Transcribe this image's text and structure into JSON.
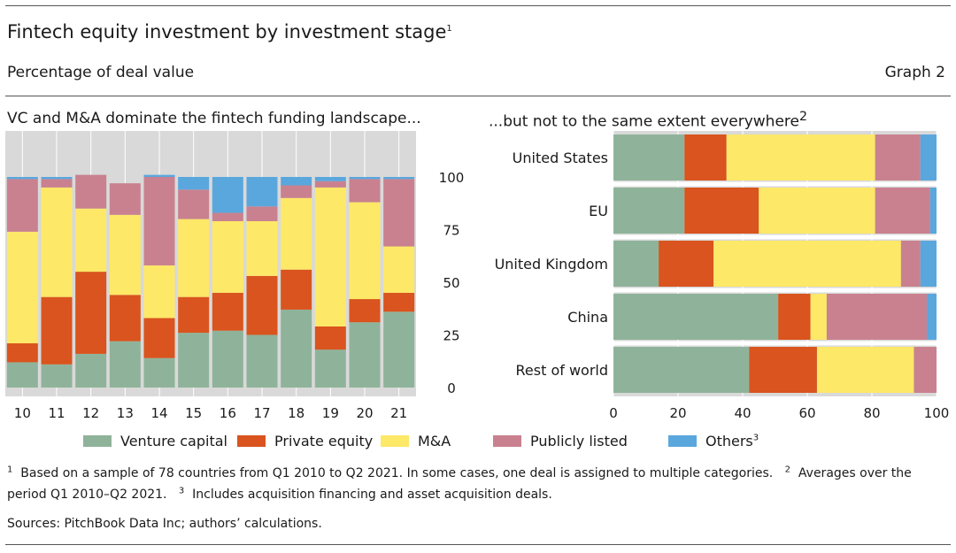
{
  "header": {
    "title": "Fintech equity investment by investment stage",
    "title_note": "1",
    "subtitle": "Percentage of deal value",
    "graph_label": "Graph 2"
  },
  "chart_data": [
    {
      "type": "bar",
      "stacked": true,
      "orientation": "vertical",
      "title": "VC and M&A dominate the fintech funding landscape...",
      "categories": [
        "10",
        "11",
        "12",
        "13",
        "14",
        "15",
        "16",
        "17",
        "18",
        "19",
        "20",
        "21"
      ],
      "ylim": [
        0,
        100
      ],
      "yticks": [
        0,
        25,
        50,
        75,
        100
      ],
      "y_axis_side": "right",
      "grid": true,
      "series": [
        {
          "name": "Venture capital",
          "values": [
            12,
            11,
            16,
            22,
            14,
            26,
            27,
            25,
            37,
            18,
            31,
            36
          ]
        },
        {
          "name": "Private equity",
          "values": [
            9,
            32,
            39,
            22,
            19,
            17,
            18,
            28,
            19,
            11,
            11,
            9
          ]
        },
        {
          "name": "M&A",
          "values": [
            53,
            52,
            30,
            38,
            25,
            37,
            34,
            26,
            34,
            66,
            46,
            22
          ]
        },
        {
          "name": "Publicly listed",
          "values": [
            25,
            4,
            16,
            15,
            42,
            14,
            4,
            7,
            6,
            3,
            11,
            32
          ]
        },
        {
          "name": "Others",
          "values": [
            1,
            1,
            0,
            0,
            1,
            6,
            17,
            14,
            4,
            2,
            1,
            1
          ]
        }
      ]
    },
    {
      "type": "bar",
      "stacked": true,
      "orientation": "horizontal",
      "title": "...but not to the same extent everywhere",
      "title_note": "2",
      "categories": [
        "United States",
        "EU",
        "United Kingdom",
        "China",
        "Rest of world"
      ],
      "xlim": [
        0,
        100
      ],
      "xticks": [
        0,
        20,
        40,
        60,
        80,
        100
      ],
      "grid": true,
      "series": [
        {
          "name": "Venture capital",
          "values": [
            22,
            22,
            14,
            51,
            42
          ]
        },
        {
          "name": "Private equity",
          "values": [
            13,
            23,
            17,
            10,
            21
          ]
        },
        {
          "name": "M&A",
          "values": [
            46,
            36,
            58,
            5,
            30
          ]
        },
        {
          "name": "Publicly listed",
          "values": [
            14,
            17,
            6,
            31,
            7
          ]
        },
        {
          "name": "Others",
          "values": [
            5,
            2,
            5,
            3,
            0
          ]
        }
      ]
    }
  ],
  "legend": [
    {
      "label": "Venture capital",
      "color": "#8fb39a"
    },
    {
      "label": "Private equity",
      "color": "#d9541e"
    },
    {
      "label": "M&A",
      "color": "#fde868"
    },
    {
      "label": "Publicly listed",
      "color": "#c9818f"
    },
    {
      "label": "Others",
      "color": "#5aa7de",
      "note": "3"
    }
  ],
  "legend_placement": "bottom",
  "footnotes": {
    "n1_mark": "1",
    "n1": "Based on a sample of 78 countries from Q1 2010 to Q2 2021. In some cases, one deal is assigned to multiple categories.",
    "n2_mark": "2",
    "n2": "Averages over the period Q1 2010–Q2 2021.",
    "n3_mark": "3",
    "n3": "Includes acquisition financing and asset acquisition deals."
  },
  "sources": "Sources: PitchBook Data Inc; authors’ calculations."
}
